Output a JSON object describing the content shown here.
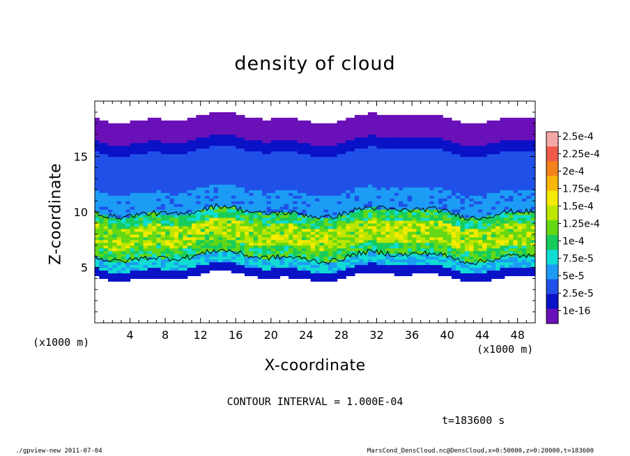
{
  "chart_data": {
    "type": "heatmap",
    "title": "density of cloud",
    "xlabel": "X-coordinate",
    "ylabel": "Z-coordinate",
    "x_unit": "(x1000 m)",
    "xlim": [
      0,
      50
    ],
    "ylim": [
      0,
      20
    ],
    "xticks": [
      4,
      8,
      12,
      16,
      20,
      24,
      28,
      32,
      36,
      40,
      44,
      48
    ],
    "yticks": [
      5,
      10,
      15
    ],
    "contour_interval": "CONTOUR INTERVAL = 1.000E-04",
    "contour_level": 0.0001,
    "time": "t=183600 s",
    "colorbar": {
      "labels": [
        "2.5e-4",
        "2.25e-4",
        "2e-4",
        "1.75e-4",
        "1.5e-4",
        "1.25e-4",
        "1e-4",
        "7.5e-5",
        "5e-5",
        "2.5e-5",
        "1e-16"
      ],
      "colors": [
        "#f6a8a8",
        "#ef5a4a",
        "#f4821c",
        "#f8b70a",
        "#f6ea00",
        "#bde600",
        "#64d814",
        "#18cc5c",
        "#10dcd4",
        "#1c9cf4",
        "#2050e8",
        "#0a12c8",
        "#6a10b8"
      ]
    },
    "bands": [
      {
        "z_bottom": 0,
        "z_top": 4.2,
        "value": null
      },
      {
        "z_bottom": 4.2,
        "z_top": 5.0,
        "value": 2e-05
      },
      {
        "z_bottom": 5.0,
        "z_top": 6.0,
        "value": 7.5e-05
      },
      {
        "z_bottom": 6.0,
        "z_top": 7.0,
        "value": 0.00011
      },
      {
        "z_bottom": 7.0,
        "z_top": 9.0,
        "value": 0.00014
      },
      {
        "z_bottom": 9.0,
        "z_top": 10.0,
        "value": 0.000105
      },
      {
        "z_bottom": 10.0,
        "z_top": 12.0,
        "value": 6e-05
      },
      {
        "z_bottom": 12.0,
        "z_top": 15.5,
        "value": 4e-05
      },
      {
        "z_bottom": 15.5,
        "z_top": 16.5,
        "value": 1.5e-05
      },
      {
        "z_bottom": 16.5,
        "z_top": 18.5,
        "value": 1e-16
      },
      {
        "z_bottom": 18.5,
        "z_top": 20.0,
        "value": null
      }
    ]
  },
  "footer": {
    "left": "./gpview-new  2011-07-04",
    "right": "MarsCond_DensCloud.nc@DensCloud,x=0:50000,z=0:20000,t=183600"
  }
}
